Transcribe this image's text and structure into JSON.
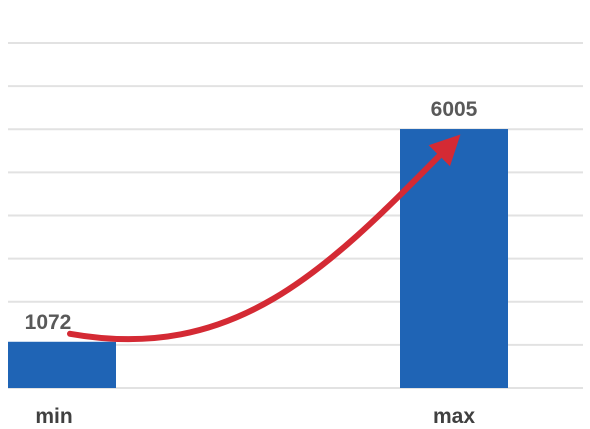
{
  "chart_data": {
    "type": "bar",
    "categories": [
      "min",
      "max"
    ],
    "values": [
      1072,
      6005
    ],
    "ylim": [
      0,
      8000
    ],
    "grid": true,
    "legend": "none",
    "annotation": "curved trend arrow from min bar to max bar",
    "colors": {
      "bar": "#1f64b5",
      "arrow": "#d42a34",
      "grid": "#e2e2e2",
      "data_label": "#595959",
      "category_label": "#404040"
    }
  }
}
